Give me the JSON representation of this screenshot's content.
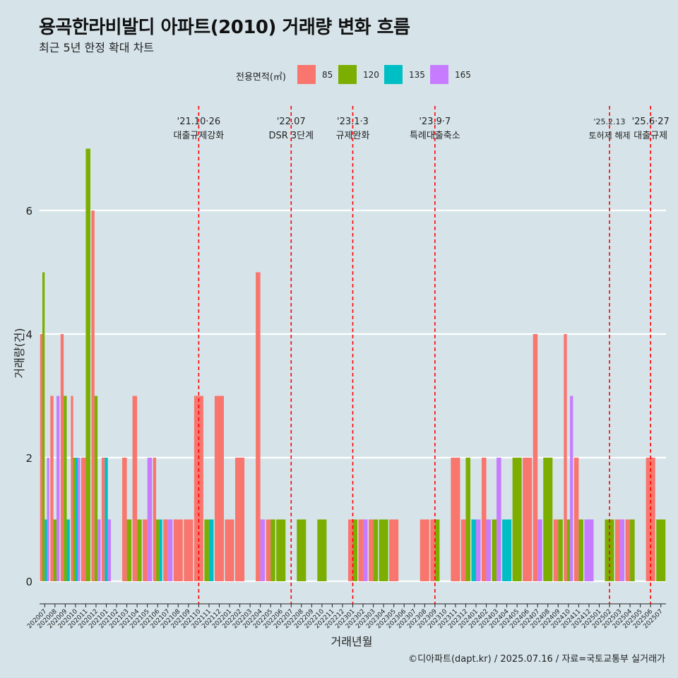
{
  "title": "용곡한라비발디 아파트(2010) 거래량 변화 흐름",
  "subtitle": "최근 5년 한정 확대 차트",
  "caption": "©디아파트(dapt.kr) / 2025.07.16 / 자료=국토교통부 실거래가",
  "legend": {
    "title": "전용면적(㎡)",
    "items": [
      {
        "label": "85",
        "color": "#f8766d"
      },
      {
        "label": "120",
        "color": "#7cae00"
      },
      {
        "label": "135",
        "color": "#00bfc4"
      },
      {
        "label": "165",
        "color": "#c77cff"
      }
    ]
  },
  "colors": {
    "background": "#d6e4ea",
    "grid": "#ffffff",
    "vline": "#ff0000"
  },
  "chart_data": {
    "type": "bar",
    "xlabel": "거래년월",
    "ylabel": "거래량(건)",
    "ylim": [
      0,
      7.5
    ],
    "yticks": [
      0,
      2,
      4,
      6
    ],
    "categories": [
      "202007",
      "202008",
      "202009",
      "202010",
      "202011",
      "202012",
      "202101",
      "202102",
      "202103",
      "202104",
      "202105",
      "202106",
      "202107",
      "202108",
      "202109",
      "202110",
      "202111",
      "202112",
      "202201",
      "202202",
      "202203",
      "202204",
      "202205",
      "202206",
      "202207",
      "202208",
      "202209",
      "202210",
      "202211",
      "202212",
      "202301",
      "202302",
      "202303",
      "202304",
      "202305",
      "202306",
      "202307",
      "202308",
      "202309",
      "202310",
      "202311",
      "202312",
      "202401",
      "202402",
      "202403",
      "202404",
      "202405",
      "202406",
      "202407",
      "202408",
      "202409",
      "202410",
      "202411",
      "202412",
      "202501",
      "202502",
      "202503",
      "202504",
      "202505",
      "202506",
      "202507"
    ],
    "series": [
      {
        "name": "85",
        "color": "#f8766d",
        "values": {
          "202007": 4,
          "202008": 3,
          "202009": 4,
          "202010": 3,
          "202011": 2,
          "202012": 6,
          "202101": 2,
          "202103": 2,
          "202104": 3,
          "202105": 1,
          "202106": 2,
          "202107": 1,
          "202108": 1,
          "202109": 1,
          "202110": 3,
          "202112": 3,
          "202201": 1,
          "202202": 2,
          "202204": 5,
          "202205": 1,
          "202301": 1,
          "202302": 1,
          "202303": 1,
          "202305": 1,
          "202308": 1,
          "202309": 1,
          "202311": 2,
          "202312": 1,
          "202402": 2,
          "202406": 2,
          "202407": 4,
          "202409": 1,
          "202410": 4,
          "202411": 2,
          "202503": 1,
          "202504": 1,
          "202506": 2
        }
      },
      {
        "name": "120",
        "color": "#7cae00",
        "values": {
          "202007": 5,
          "202008": 1,
          "202009": 3,
          "202010": 2,
          "202011": 7,
          "202012": 3,
          "202103": 1,
          "202104": 1,
          "202106": 1,
          "202111": 1,
          "202205": 1,
          "202206": 1,
          "202208": 1,
          "202210": 1,
          "202301": 1,
          "202303": 1,
          "202304": 1,
          "202309": 1,
          "202312": 2,
          "202403": 1,
          "202405": 2,
          "202408": 2,
          "202409": 1,
          "202410": 1,
          "202411": 1,
          "202502": 1,
          "202504": 1,
          "202507": 1
        }
      },
      {
        "name": "135",
        "color": "#00bfc4",
        "values": {
          "202007": 1,
          "202009": 1,
          "202010": 2,
          "202101": 2,
          "202106": 1,
          "202111": 1,
          "202401": 1,
          "202404": 1
        }
      },
      {
        "name": "165",
        "color": "#c77cff",
        "values": {
          "202007": 2,
          "202008": 3,
          "202010": 2,
          "202012": 1,
          "202101": 1,
          "202105": 2,
          "202107": 1,
          "202204": 1,
          "202302": 1,
          "202401": 1,
          "202402": 1,
          "202403": 2,
          "202407": 1,
          "202410": 3,
          "202412": 1,
          "202503": 1
        }
      }
    ],
    "events": [
      {
        "month": "202110",
        "date": "'21.10·26",
        "label": "대출규제강화"
      },
      {
        "month": "202207",
        "date": "'22.07",
        "label": "DSR 3단계"
      },
      {
        "month": "202301",
        "date": "'23.1·3",
        "label": "규제완화"
      },
      {
        "month": "202309",
        "date": "'23.9·7",
        "label": "특례대출축소"
      },
      {
        "month": "202502",
        "date": "'25.2.13",
        "label": "토허제 해제"
      },
      {
        "month": "202506",
        "date": "'25.6·27",
        "label": "대출규제"
      }
    ]
  }
}
